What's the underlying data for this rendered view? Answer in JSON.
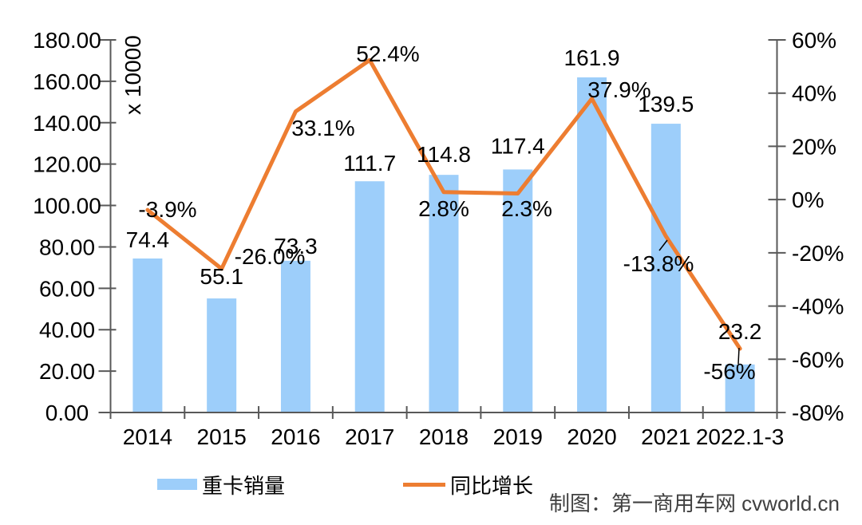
{
  "chart_data": {
    "type": "combo-bar-line",
    "categories": [
      "2014",
      "2015",
      "2016",
      "2017",
      "2018",
      "2019",
      "2020",
      "2021",
      "2022.1-3"
    ],
    "series": [
      {
        "name": "重卡销量",
        "type": "bar",
        "axis": "left",
        "values": [
          74.4,
          55.1,
          73.3,
          111.7,
          114.8,
          117.4,
          161.9,
          139.5,
          23.2
        ],
        "labels": [
          "74.4",
          "55.1",
          "73.3",
          "111.7",
          "114.8",
          "117.4",
          "161.9",
          "139.5",
          "23.2"
        ]
      },
      {
        "name": "同比增长",
        "type": "line",
        "axis": "right",
        "values": [
          -3.9,
          -26.0,
          33.1,
          52.4,
          2.8,
          2.3,
          37.9,
          -13.8,
          -56
        ],
        "labels": [
          "-3.9%",
          "-26.0%",
          "33.1%",
          "52.4%",
          "2.8%",
          "2.3%",
          "37.9%",
          "-13.8%",
          "-56%"
        ]
      }
    ],
    "left_axis": {
      "unit_label": "x 10000",
      "min": 0,
      "max": 180,
      "step": 20,
      "tick_labels_top_down": [
        "180.00",
        "160.00",
        "140.00",
        "120.00",
        "100.00",
        "80.00",
        "60.00",
        "40.00",
        "20.00",
        "0.00"
      ]
    },
    "right_axis": {
      "min": -80,
      "max": 60,
      "step": 20,
      "tick_labels_top_down": [
        "60%",
        "40%",
        "20%",
        "0%",
        "-20%",
        "-40%",
        "-60%",
        "-80%"
      ]
    },
    "legend": [
      "重卡销量",
      "同比增长"
    ],
    "credit": "制图：第一商用车网 cvworld.cn",
    "grid": "off",
    "legend_position": "bottom"
  },
  "colors": {
    "bar": "#9DCEFA",
    "line": "#ED7D31",
    "axis": "#595959",
    "label_text": "#000000",
    "leader_line": "#000000",
    "credit_text": "#404040"
  }
}
